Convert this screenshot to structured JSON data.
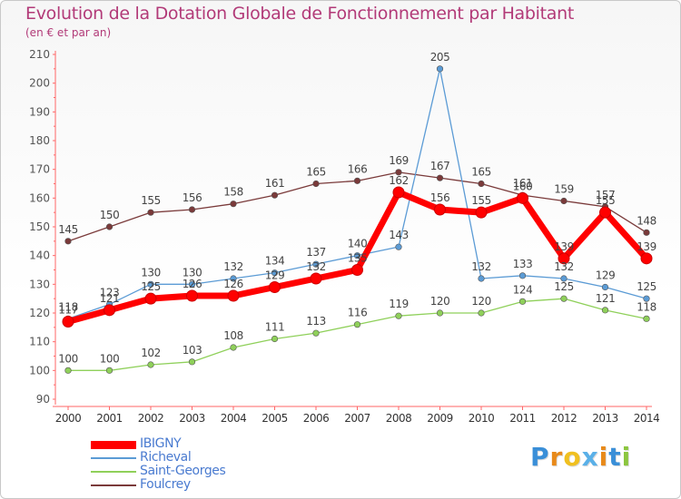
{
  "chart_data": {
    "type": "line",
    "title": "Evolution de la Dotation Globale de Fonctionnement par Habitant",
    "subtitle": "(en € et par an)",
    "xlabel": "",
    "ylabel": "",
    "categories": [
      "2000",
      "2001",
      "2002",
      "2003",
      "2004",
      "2005",
      "2006",
      "2007",
      "2008",
      "2009",
      "2010",
      "2011",
      "2012",
      "2013",
      "2014"
    ],
    "ylim": [
      90,
      210
    ],
    "yticks": [
      90,
      100,
      110,
      120,
      130,
      140,
      150,
      160,
      170,
      180,
      190,
      200,
      210
    ],
    "grid": false,
    "legend_position": "bottom-left",
    "series": [
      {
        "name": "IBIGNY",
        "color": "#ff0000",
        "values": [
          117,
          121,
          125,
          126,
          126,
          129,
          132,
          135,
          162,
          156,
          155,
          160,
          139,
          155,
          139
        ]
      },
      {
        "name": "Richeval",
        "color": "#5b9bd5",
        "values": [
          118,
          123,
          130,
          130,
          132,
          134,
          137,
          140,
          143,
          205,
          132,
          133,
          132,
          129,
          125
        ]
      },
      {
        "name": "Saint-Georges",
        "color": "#8fd05a",
        "values": [
          100,
          100,
          102,
          103,
          108,
          111,
          113,
          116,
          119,
          120,
          120,
          124,
          125,
          121,
          118
        ]
      },
      {
        "name": "Foulcrey",
        "color": "#7a3a3a",
        "values": [
          145,
          150,
          155,
          156,
          158,
          161,
          165,
          166,
          169,
          167,
          165,
          161,
          159,
          157,
          148
        ]
      }
    ]
  },
  "logo": {
    "text": "Proxiti",
    "letters": [
      {
        "ch": "P",
        "color": "#3a8fd8"
      },
      {
        "ch": "r",
        "color": "#e88a1a"
      },
      {
        "ch": "o",
        "color": "#f0c020"
      },
      {
        "ch": "x",
        "color": "#5ab0e8"
      },
      {
        "ch": "i",
        "color": "#e88a1a"
      },
      {
        "ch": "t",
        "color": "#3a8fd8"
      },
      {
        "ch": "i",
        "color": "#8cc63f"
      }
    ]
  }
}
